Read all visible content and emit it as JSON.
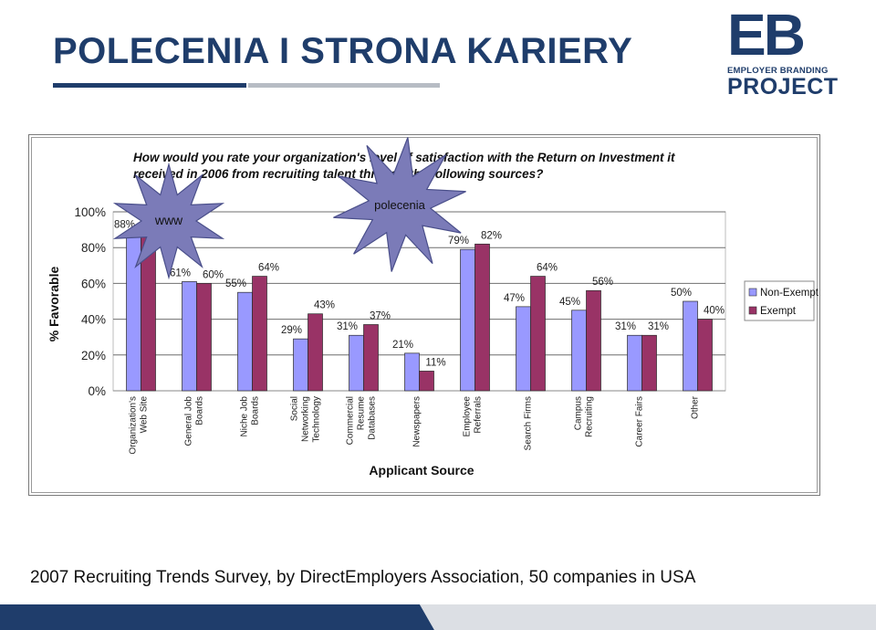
{
  "slide": {
    "title": "POLECENIA I STRONA KARIERY",
    "footnote": "2007 Recruiting Trends Survey, by DirectEmployers Association, 50 companies in USA"
  },
  "logo": {
    "letters": "EB",
    "line1": "EMPLOYER BRANDING",
    "line2": "PROJECT"
  },
  "colors": {
    "title": "#1f3d6b",
    "non_exempt": "#9999ff",
    "exempt": "#993366",
    "callout_fill": "#7b7bb8",
    "footer": "#1f3d6b"
  },
  "callouts": [
    {
      "label": "www"
    },
    {
      "label": "polecenia"
    }
  ],
  "chart_data": {
    "type": "bar",
    "title": "How would you rate your organization's level of satisfaction with the Return on Investment it received in 2006 from recruiting talent through the following sources?",
    "xlabel": "Applicant Source",
    "ylabel": "% Favorable",
    "ylim": [
      0,
      100
    ],
    "yticks": [
      "0%",
      "20%",
      "40%",
      "60%",
      "80%",
      "100%"
    ],
    "grid": true,
    "legend_position": "right",
    "categories": [
      [
        "Organization's",
        "Web Site"
      ],
      [
        "General Job",
        "Boards"
      ],
      [
        "Niche Job",
        "Boards"
      ],
      [
        "Social",
        "Networking",
        "Technology"
      ],
      [
        "Commercial",
        "Resume",
        "Databases"
      ],
      [
        "Newspapers"
      ],
      [
        "Employee",
        "Referrals"
      ],
      [
        "Search Firms"
      ],
      [
        "Campus",
        "Recruiting"
      ],
      [
        "Career Fairs"
      ],
      [
        "Other"
      ]
    ],
    "series": [
      {
        "name": "Non-Exempt",
        "color": "#9999ff",
        "values": [
          88,
          61,
          55,
          29,
          31,
          21,
          79,
          47,
          45,
          31,
          50
        ],
        "labels": [
          "88%",
          "61%",
          "55%",
          "29%",
          "31%",
          "21%",
          "79%",
          "47%",
          "45%",
          "31%",
          "50%"
        ]
      },
      {
        "name": "Exempt",
        "color": "#993366",
        "values": [
          91,
          60,
          64,
          43,
          37,
          11,
          82,
          64,
          56,
          31,
          40
        ],
        "labels": [
          "91%",
          "60%",
          "64%",
          "43%",
          "37%",
          "11%",
          "82%",
          "64%",
          "56%",
          "31%",
          "40%"
        ]
      }
    ]
  }
}
